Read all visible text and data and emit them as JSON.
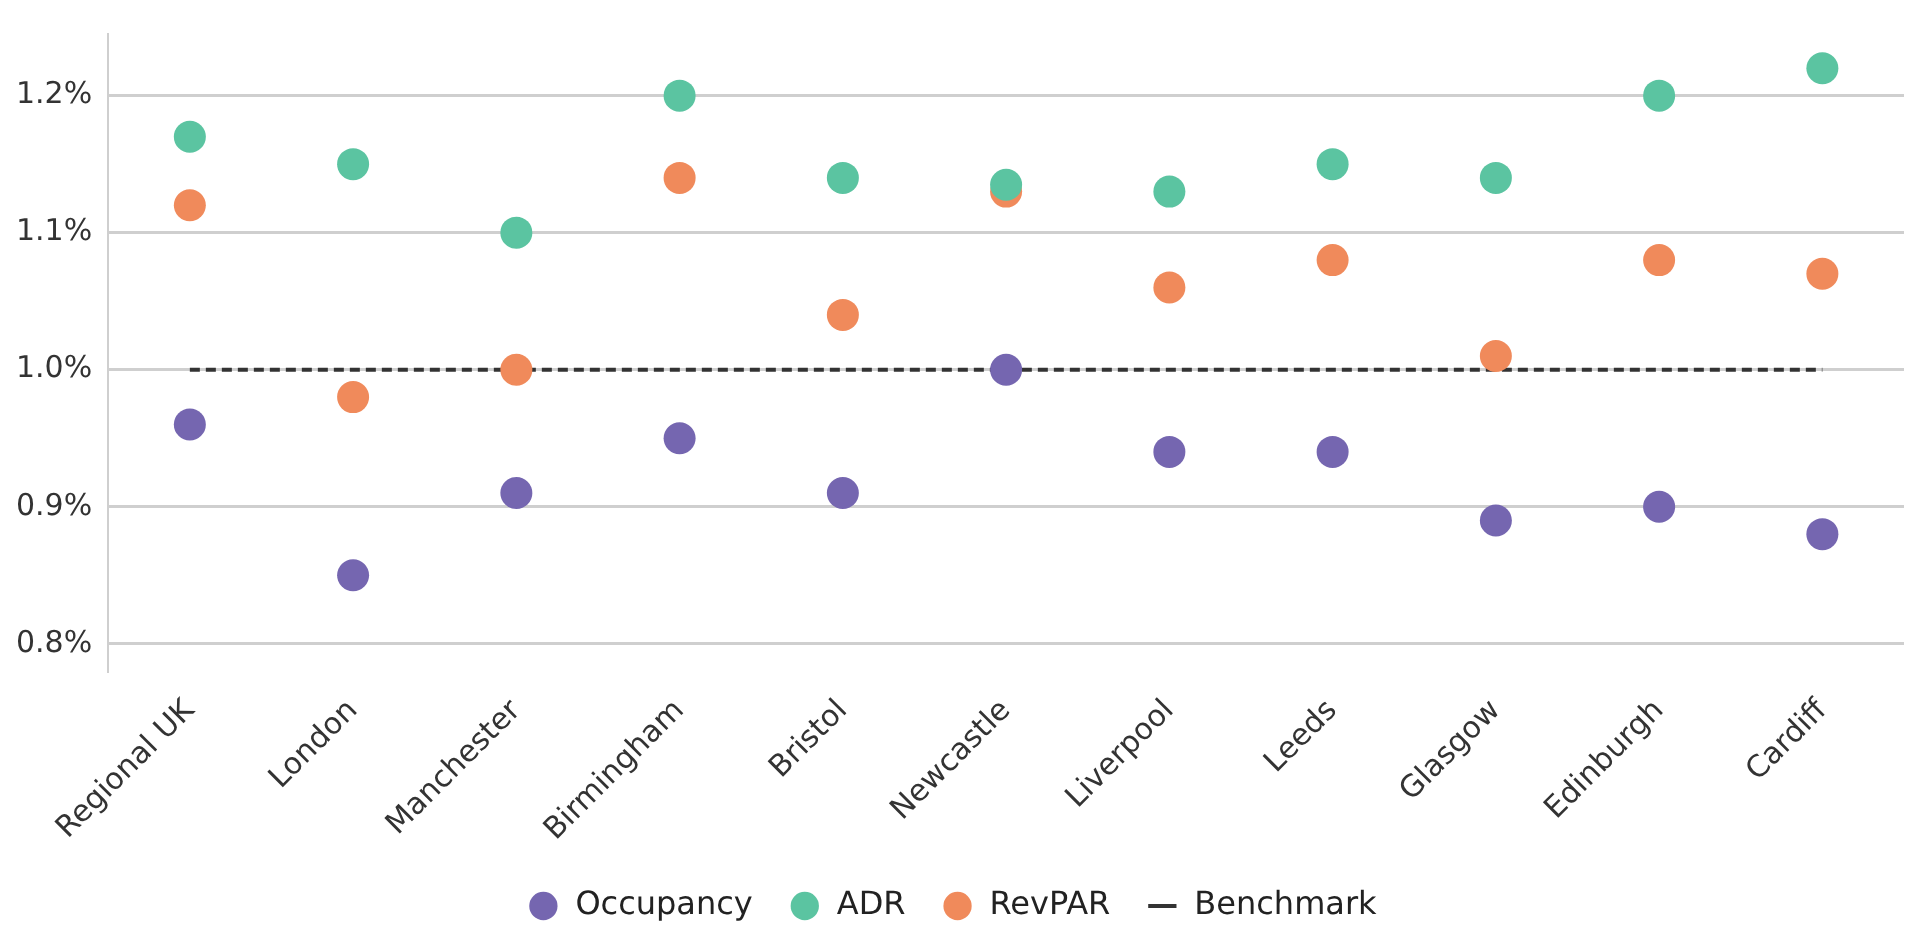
{
  "chart_data": {
    "type": "scatter",
    "categories": [
      "Regional UK",
      "London",
      "Manchester",
      "Birmingham",
      "Bristol",
      "Newcastle",
      "Liverpool",
      "Leeds",
      "Glasgow",
      "Edinburgh",
      "Cardiff"
    ],
    "series": [
      {
        "name": "Occupancy",
        "color": "#7566b0",
        "values": [
          0.96,
          0.85,
          0.91,
          0.95,
          0.91,
          1.0,
          0.94,
          0.94,
          0.89,
          0.9,
          0.88
        ]
      },
      {
        "name": "ADR",
        "color": "#5bc4a1",
        "values": [
          1.17,
          1.15,
          1.1,
          1.2,
          1.14,
          1.135,
          1.13,
          1.15,
          1.14,
          1.2,
          1.22
        ]
      },
      {
        "name": "RevPAR",
        "color": "#f08a5b",
        "values": [
          1.12,
          0.98,
          1.0,
          1.14,
          1.04,
          1.13,
          1.06,
          1.08,
          1.01,
          1.08,
          1.07
        ]
      }
    ],
    "ref_lines": [
      {
        "axis": "y",
        "value": 1.0,
        "label": "Benchmark",
        "color": "#333333",
        "line_style": "dashed"
      }
    ],
    "ylim": [
      0.78,
      1.245
    ],
    "yticks": [
      {
        "value": 0.8,
        "label": "0.8%"
      },
      {
        "value": 0.9,
        "label": "0.9%"
      },
      {
        "value": 1.0,
        "label": "1.0%"
      },
      {
        "value": 1.1,
        "label": "1.1%"
      },
      {
        "value": 1.2,
        "label": "1.2%"
      }
    ],
    "grid": "y",
    "legend": "bottom",
    "marker": "circle"
  }
}
